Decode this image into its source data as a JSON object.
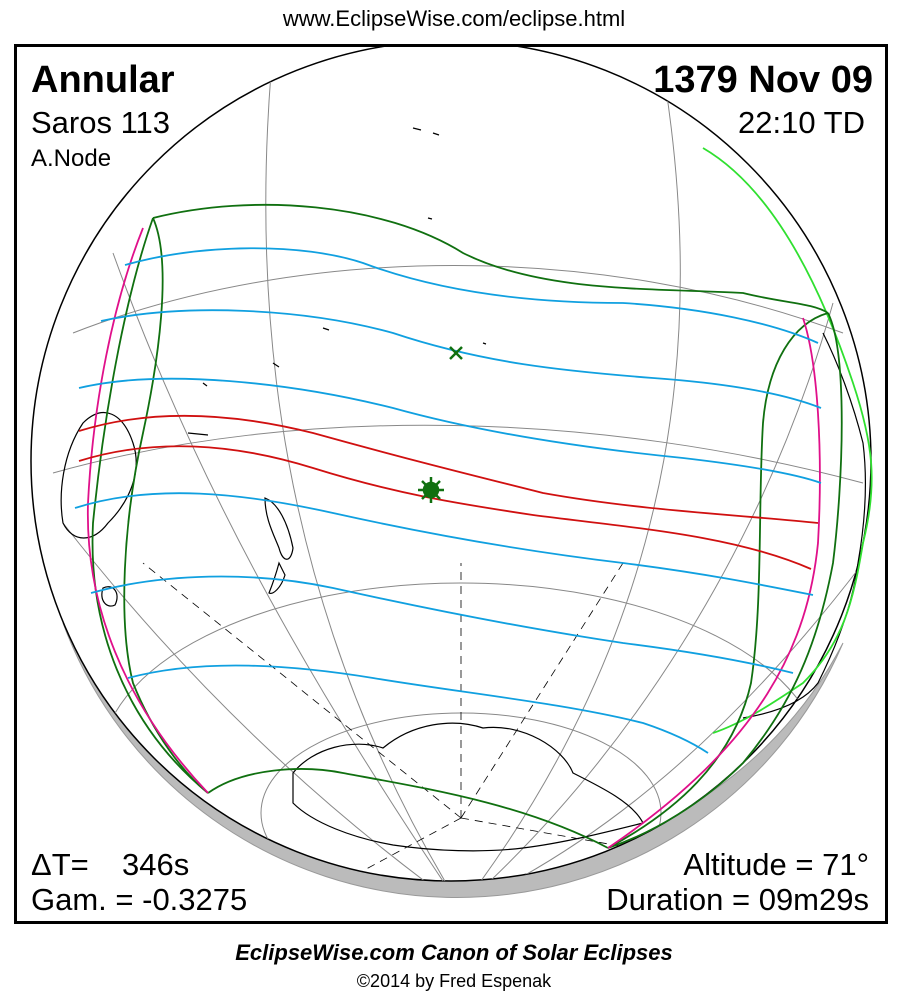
{
  "header": {
    "url": "www.EclipseWise.com/eclipse.html"
  },
  "eclipse": {
    "type": "Annular",
    "date": "1379 Nov 09",
    "saros": "Saros 113",
    "time": "22:10 TD",
    "node": "A.Node",
    "delta_t_label": "ΔT=",
    "delta_t_value": "346s",
    "gamma": "Gam. = -0.3275",
    "altitude": "Altitude = 71°",
    "duration": "Duration = 09m29s"
  },
  "footer": {
    "canon": "EclipseWise.com Canon of Solar Eclipses",
    "copyright": "©2014 by Fred Espenak"
  },
  "colors": {
    "central_path": "#d01010",
    "partial_lines": "#10a0e0",
    "outer_limits": "#107010",
    "rise_set": "#e0108a",
    "sunrise_coast": "#30e030",
    "shadow": "#bbbbbb"
  },
  "icons": {
    "greatest_eclipse": "green-star-icon",
    "sub_solar": "green-x-icon"
  }
}
